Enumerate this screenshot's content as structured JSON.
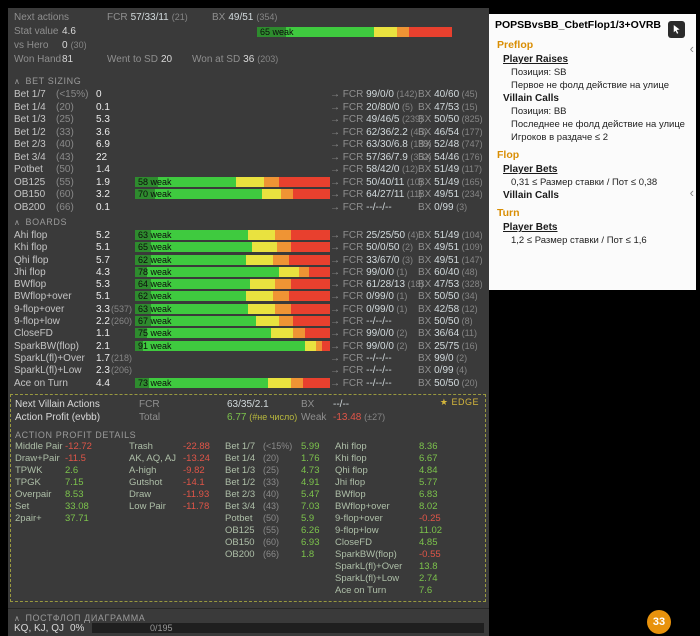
{
  "icons": {
    "collapse": "∧",
    "chevron_left": "‹",
    "star": "★",
    "arrow": "→"
  },
  "labels": {
    "fcr": "FCR",
    "bx": "BX"
  },
  "colors": {
    "bar_darkgreen": "#2e8b2e",
    "bar_green": "#3fca3f",
    "bar_yellow": "#e9e23f",
    "bar_orange": "#ef9434",
    "bar_red": "#e8402e",
    "positive": "#7cc34c",
    "negative": "#e05548",
    "edge_gold": "#d4b63c",
    "street_orange": "#d98e04"
  },
  "top_stats": {
    "next_actions_label": "Next actions",
    "fcr_value": "57/33/11",
    "fcr_count": "(21)",
    "bx_value": "49/51",
    "bx_count": "(354)",
    "stat_value_label": "Stat value",
    "stat_value": "4.6",
    "stat_bar": {
      "label": "65 weak",
      "segments": [
        15,
        45,
        12,
        6,
        22
      ]
    },
    "vs_hero_label": "vs Hero",
    "vs_hero_value": "0",
    "vs_hero_count": "(30)",
    "won_hand_label": "Won Hand",
    "won_hand_value": "81",
    "went_sd_label": "Went to SD",
    "went_sd_value": "20",
    "won_sd_label": "Won at SD",
    "won_sd_value": "36",
    "won_sd_count": "(203)"
  },
  "bet_sizing": {
    "header": "BET SIZING",
    "rows": [
      {
        "label": "Bet 1/7",
        "pct": "(<15%)",
        "value": "0",
        "count": "",
        "bar": null,
        "fcr": "99/0/0",
        "fcr_count": "(142)",
        "bx": "40/60",
        "bx_count": "(45)"
      },
      {
        "label": "Bet 1/4",
        "pct": "(20)",
        "value": "0.1",
        "count": "",
        "bar": null,
        "fcr": "20/80/0",
        "fcr_count": "(5)",
        "bx": "47/53",
        "bx_count": "(15)"
      },
      {
        "label": "Bet 1/3",
        "pct": "(25)",
        "value": "5.3",
        "count": "",
        "bar": null,
        "fcr": "49/46/5",
        "fcr_count": "(239)",
        "bx": "50/50",
        "bx_count": "(825)"
      },
      {
        "label": "Bet 1/2",
        "pct": "(33)",
        "value": "3.6",
        "count": "",
        "bar": null,
        "fcr": "62/36/2.2",
        "fcr_count": "(45)",
        "bx": "46/54",
        "bx_count": "(177)"
      },
      {
        "label": "Bet 2/3",
        "pct": "(40)",
        "value": "6.9",
        "count": "",
        "bar": null,
        "fcr": "63/30/6.8",
        "fcr_count": "(135)",
        "bx": "52/48",
        "bx_count": "(747)"
      },
      {
        "label": "Bet 3/4",
        "pct": "(43)",
        "value": "22",
        "count": "",
        "bar": null,
        "fcr": "57/36/7.9",
        "fcr_count": "(352)",
        "bx": "54/46",
        "bx_count": "(176)"
      },
      {
        "label": "Potbet",
        "pct": "(50)",
        "value": "1.4",
        "count": "",
        "bar": null,
        "fcr": "58/42/0",
        "fcr_count": "(12)",
        "bx": "51/49",
        "bx_count": "(117)"
      },
      {
        "label": "OB125",
        "pct": "(55)",
        "value": "1.9",
        "count": "",
        "bar": {
          "label": "58 weak",
          "segments": [
            12,
            40,
            14,
            8,
            26
          ]
        },
        "fcr": "50/40/11",
        "fcr_count": "(10)",
        "bx": "51/49",
        "bx_count": "(165)"
      },
      {
        "label": "OB150",
        "pct": "(60)",
        "value": "3.2",
        "count": "",
        "bar": {
          "label": "70 weak",
          "segments": [
            10,
            55,
            10,
            6,
            19
          ]
        },
        "fcr": "64/27/11",
        "fcr_count": "(11)",
        "bx": "49/51",
        "bx_count": "(234)"
      },
      {
        "label": "OB200",
        "pct": "(66)",
        "value": "0.1",
        "count": "",
        "bar": null,
        "fcr": "--/--/--",
        "fcr_count": "",
        "bx": "0/99",
        "bx_count": "(3)"
      }
    ]
  },
  "boards": {
    "header": "BOARDS",
    "rows": [
      {
        "label": "Ahi flop",
        "pct": "",
        "value": "5.2",
        "count": "",
        "bar": {
          "label": "63 weak",
          "segments": [
            8,
            50,
            14,
            8,
            20
          ]
        },
        "fcr": "25/25/50",
        "fcr_count": "(4)",
        "bx": "51/49",
        "bx_count": "(104)"
      },
      {
        "label": "Khi flop",
        "pct": "",
        "value": "5.1",
        "count": "",
        "bar": {
          "label": "65 weak",
          "segments": [
            8,
            52,
            13,
            7,
            20
          ]
        },
        "fcr": "50/0/50",
        "fcr_count": "(2)",
        "bx": "49/51",
        "bx_count": "(109)"
      },
      {
        "label": "Qhi flop",
        "pct": "",
        "value": "5.7",
        "count": "",
        "bar": {
          "label": "62 weak",
          "segments": [
            8,
            49,
            14,
            8,
            21
          ]
        },
        "fcr": "33/67/0",
        "fcr_count": "(3)",
        "bx": "49/51",
        "bx_count": "(147)"
      },
      {
        "label": "Jhi flop",
        "pct": "",
        "value": "4.3",
        "count": "",
        "bar": {
          "label": "78 weak",
          "segments": [
            6,
            68,
            10,
            5,
            11
          ]
        },
        "fcr": "99/0/0",
        "fcr_count": "(1)",
        "bx": "60/40",
        "bx_count": "(48)"
      },
      {
        "label": "BWflop",
        "pct": "",
        "value": "5.3",
        "count": "",
        "bar": {
          "label": "64 weak",
          "segments": [
            8,
            51,
            13,
            8,
            20
          ]
        },
        "fcr": "61/28/13",
        "fcr_count": "(18)",
        "bx": "47/53",
        "bx_count": "(328)"
      },
      {
        "label": "BWflop+over",
        "pct": "",
        "value": "5.1",
        "count": "",
        "bar": {
          "label": "62 weak",
          "segments": [
            8,
            49,
            14,
            8,
            21
          ]
        },
        "fcr": "0/99/0",
        "fcr_count": "(1)",
        "bx": "50/50",
        "bx_count": "(34)"
      },
      {
        "label": "9-flop+over",
        "pct": "",
        "value": "3.3",
        "count": "(537)",
        "bar": {
          "label": "63 weak",
          "segments": [
            8,
            50,
            14,
            8,
            20
          ]
        },
        "fcr": "0/99/0",
        "fcr_count": "(1)",
        "bx": "42/58",
        "bx_count": "(12)"
      },
      {
        "label": "9-flop+low",
        "pct": "",
        "value": "2.2",
        "count": "(260)",
        "bar": {
          "label": "67 weak",
          "segments": [
            8,
            54,
            12,
            7,
            19
          ]
        },
        "fcr": "--/--/--",
        "fcr_count": "",
        "bx": "50/50",
        "bx_count": "(8)"
      },
      {
        "label": "CloseFD",
        "pct": "",
        "value": "1.1",
        "count": "",
        "bar": {
          "label": "75 weak",
          "segments": [
            6,
            64,
            11,
            6,
            13
          ]
        },
        "fcr": "99/0/0",
        "fcr_count": "(2)",
        "bx": "36/64",
        "bx_count": "(11)"
      },
      {
        "label": "SparkBW(flop)",
        "pct": "",
        "value": "2.1",
        "count": "",
        "bar": {
          "label": "91 weak",
          "segments": [
            4,
            83,
            6,
            3,
            4
          ]
        },
        "fcr": "99/0/0",
        "fcr_count": "(2)",
        "bx": "25/75",
        "bx_count": "(16)"
      },
      {
        "label": "SparkL(fl)+Over",
        "pct": "",
        "value": "1.7",
        "count": "(218)",
        "bar": null,
        "fcr": "--/--/--",
        "fcr_count": "",
        "bx": "99/0",
        "bx_count": "(2)"
      },
      {
        "label": "SparkL(fl)+Low",
        "pct": "",
        "value": "2.3",
        "count": "(206)",
        "bar": null,
        "fcr": "--/--/--",
        "fcr_count": "",
        "bx": "0/99",
        "bx_count": "(4)"
      },
      {
        "label": "Ace on Turn",
        "pct": "",
        "value": "4.4",
        "count": "",
        "bar": {
          "label": "73 weak",
          "segments": [
            7,
            61,
            12,
            6,
            14
          ]
        },
        "fcr": "--/--/--",
        "fcr_count": "",
        "bx": "50/50",
        "bx_count": "(20)"
      }
    ]
  },
  "villain": {
    "title": "Next Villain Actions",
    "fcr_value": "63/35/2.1",
    "bx_value": "--/--",
    "profit_label": "Action Profit (evbb)",
    "total_label": "Total",
    "total_value": "6.77",
    "total_note": "(#не число)",
    "weak_label": "Weak",
    "weak_value": "-13.48",
    "weak_note": "(±27)",
    "edge_label": "EDGE",
    "details_header": "ACTION PROFIT DETAILS",
    "hand_groups": [
      {
        "label": "Middle Pair",
        "value": "-12.72"
      },
      {
        "label": "Draw+Pair",
        "value": "-11.5"
      },
      {
        "label": "TPWK",
        "value": "2.6"
      },
      {
        "label": "TPGK",
        "value": "7.15"
      },
      {
        "label": "Overpair",
        "value": "8.53"
      },
      {
        "label": "Set",
        "value": "33.08"
      },
      {
        "label": "2pair+",
        "value": "37.71"
      }
    ],
    "hand_groups2": [
      {
        "label": "Trash",
        "value": "-22.88"
      },
      {
        "label": "AK, AQ, AJ",
        "value": "-13.24"
      },
      {
        "label": "A-high",
        "value": "-9.82"
      },
      {
        "label": "Gutshot",
        "value": "-14.1"
      },
      {
        "label": "Draw",
        "value": "-11.93"
      },
      {
        "label": "Low Pair",
        "value": "-11.78"
      }
    ],
    "sizing_profits": [
      {
        "label": "Bet 1/7",
        "pct": "(<15%)",
        "value": "5.99"
      },
      {
        "label": "Bet 1/4",
        "pct": "(20)",
        "value": "1.76"
      },
      {
        "label": "Bet 1/3",
        "pct": "(25)",
        "value": "4.73"
      },
      {
        "label": "Bet 1/2",
        "pct": "(33)",
        "value": "4.91"
      },
      {
        "label": "Bet 2/3",
        "pct": "(40)",
        "value": "5.47"
      },
      {
        "label": "Bet 3/4",
        "pct": "(43)",
        "value": "7.03"
      },
      {
        "label": "Potbet",
        "pct": "(50)",
        "value": "5.9"
      },
      {
        "label": "OB125",
        "pct": "(55)",
        "value": "6.26"
      },
      {
        "label": "OB150",
        "pct": "(60)",
        "value": "6.93"
      },
      {
        "label": "OB200",
        "pct": "(66)",
        "value": "1.8"
      }
    ],
    "board_profits": [
      {
        "label": "Ahi flop",
        "value": "8.36"
      },
      {
        "label": "Khi flop",
        "value": "6.67"
      },
      {
        "label": "Qhi flop",
        "value": "4.84"
      },
      {
        "label": "Jhi flop",
        "value": "5.77"
      },
      {
        "label": "BWflop",
        "value": "6.83"
      },
      {
        "label": "BWflop+over",
        "value": "8.02"
      },
      {
        "label": "9-flop+over",
        "value": "-0.25"
      },
      {
        "label": "9-flop+low",
        "value": "11.02"
      },
      {
        "label": "CloseFD",
        "value": "4.85"
      },
      {
        "label": "SparkBW(flop)",
        "value": "-0.55"
      },
      {
        "label": "SparkL(fl)+Over",
        "value": "13.8"
      },
      {
        "label": "SparkL(fl)+Low",
        "value": "2.74"
      },
      {
        "label": "Ace on Turn",
        "value": "7.6"
      }
    ]
  },
  "right_panel": {
    "title": "POPSBvsBB_CbetFlop1/3+OVRB",
    "lines": [
      {
        "style": "street",
        "text": "Preflop"
      },
      {
        "style": "link",
        "text": "Player Raises"
      },
      {
        "style": "text",
        "text": "Позиция: SB"
      },
      {
        "style": "text",
        "text": "Первое не фолд действие на улице"
      },
      {
        "style": "bold",
        "text": "Villain Calls"
      },
      {
        "style": "text",
        "text": "Позиция: BB"
      },
      {
        "style": "text",
        "text": "Последнее не фолд действие на улице"
      },
      {
        "style": "text",
        "text": "Игроков в раздаче ≤ 2"
      },
      {
        "style": "street",
        "text": "Flop"
      },
      {
        "style": "link",
        "text": "Player Bets"
      },
      {
        "style": "text",
        "text": "0,31 ≤ Размер ставки / Пот ≤ 0,38"
      },
      {
        "style": "bold",
        "text": "Villain Calls"
      },
      {
        "style": "street",
        "text": "Turn"
      },
      {
        "style": "link",
        "text": "Player Bets"
      },
      {
        "style": "text",
        "text": "1,2 ≤ Размер ставки / Пот ≤ 1,6"
      }
    ]
  },
  "bottom": {
    "header": "ПОСТФЛОП ДИАГРАММА",
    "combos": "KQ, KJ, QJ",
    "pct": "0%",
    "progress": "0/195"
  },
  "badge": {
    "value": "33"
  }
}
